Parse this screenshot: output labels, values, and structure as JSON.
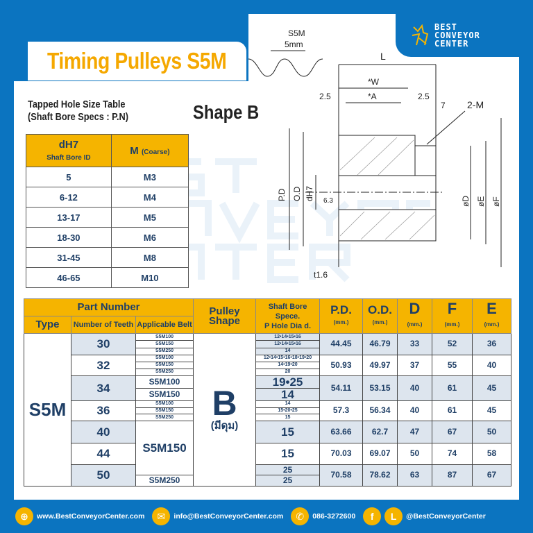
{
  "title": "Timing Pulleys S5M",
  "logo": {
    "line1": "BEST",
    "line2": "CONVEYOR",
    "line3": "CENTER"
  },
  "watermark": [
    "BEST",
    "CONVEYOR",
    "CENTER"
  ],
  "subtitle": {
    "line1": "Tapped Hole Size Table",
    "line2": "(Shaft Bore Specs : P.N)"
  },
  "shape_title": "Shape B",
  "diagram": {
    "belt": "S5M",
    "pitch": "5mm",
    "L": "L",
    "W": "*W",
    "A": "*A",
    "d1": "2.5",
    "d2": "2.5",
    "d7": "7",
    "m": "2-M",
    "pd": "P.D",
    "od": "O.D",
    "dh7": "dH7",
    "r": "6.3",
    "t": "t1.6",
    "D": "øD",
    "E": "øE",
    "F": "øF"
  },
  "tapped_table": {
    "headers": [
      {
        "main": "dH7",
        "sub": "Shaft Bore ID"
      },
      {
        "main": "M",
        "sub": "(Coarse)"
      }
    ],
    "rows": [
      [
        "5",
        "M3"
      ],
      [
        "6-12",
        "M4"
      ],
      [
        "13-17",
        "M5"
      ],
      [
        "18-30",
        "M6"
      ],
      [
        "31-45",
        "M8"
      ],
      [
        "46-65",
        "M10"
      ]
    ]
  },
  "main_table": {
    "headers": {
      "part_number": "Part Number",
      "type": "Type",
      "teeth": "Number of Teeth",
      "belt": "Applicable Belt",
      "shape": "Pulley Shape",
      "bore1": "Shaft Bore Spece.",
      "bore2": "P Hole Dia d.",
      "pd": "P.D.",
      "od": "O.D.",
      "d": "D",
      "f": "F",
      "e": "E",
      "unit": "(mm.)"
    },
    "type": "S5M",
    "shape": "B",
    "shape_note": "(มีดุม)",
    "groups": [
      {
        "teeth": "30",
        "belts": [
          "S5M100",
          "S5M150",
          "S5M250"
        ],
        "bores": [
          "12•14•15•16",
          "12•14•15•16",
          "14"
        ],
        "pd": "44.45",
        "od": "46.79",
        "d": "33",
        "f": "52",
        "e": "36"
      },
      {
        "teeth": "32",
        "belts": [
          "S5M100",
          "S5M150",
          "S5M250"
        ],
        "bores": [
          "12•14•15•16•18•19•20",
          "14•19•20",
          "20"
        ],
        "pd": "50.93",
        "od": "49.97",
        "d": "37",
        "f": "55",
        "e": "40"
      },
      {
        "teeth": "34",
        "belts": [
          "S5M100",
          "S5M150"
        ],
        "bores": [
          "19•25",
          "14"
        ],
        "pd": "54.11",
        "od": "53.15",
        "d": "40",
        "f": "61",
        "e": "45"
      },
      {
        "teeth": "36",
        "belts": [
          "S5M100",
          "S5M150",
          "S5M250"
        ],
        "bores": [
          "14",
          "15•20•25",
          "15"
        ],
        "pd": "57.3",
        "od": "56.34",
        "d": "40",
        "f": "61",
        "e": "45"
      },
      {
        "teeth": "40",
        "bores": [
          "15"
        ],
        "pd": "63.66",
        "od": "62.7",
        "d": "47",
        "f": "67",
        "e": "50"
      },
      {
        "teeth": "44",
        "bores": [
          "15"
        ],
        "pd": "70.03",
        "od": "69.07",
        "d": "50",
        "f": "74",
        "e": "58"
      },
      {
        "teeth": "50",
        "bores": [
          "25",
          "25"
        ],
        "pd": "70.58",
        "od": "78.62",
        "d": "63",
        "f": "87",
        "e": "67"
      }
    ],
    "belt_span": "S5M150",
    "belt_last": "S5M250"
  },
  "footer": {
    "web": "www.BestConveyorCenter.com",
    "email": "info@BestConveyorCenter.com",
    "phone": "086-3272600",
    "social": "@BestConveyorCenter"
  },
  "colors": {
    "blue": "#0b74c0",
    "yellow": "#f5b400",
    "navy": "#1f3f66"
  }
}
